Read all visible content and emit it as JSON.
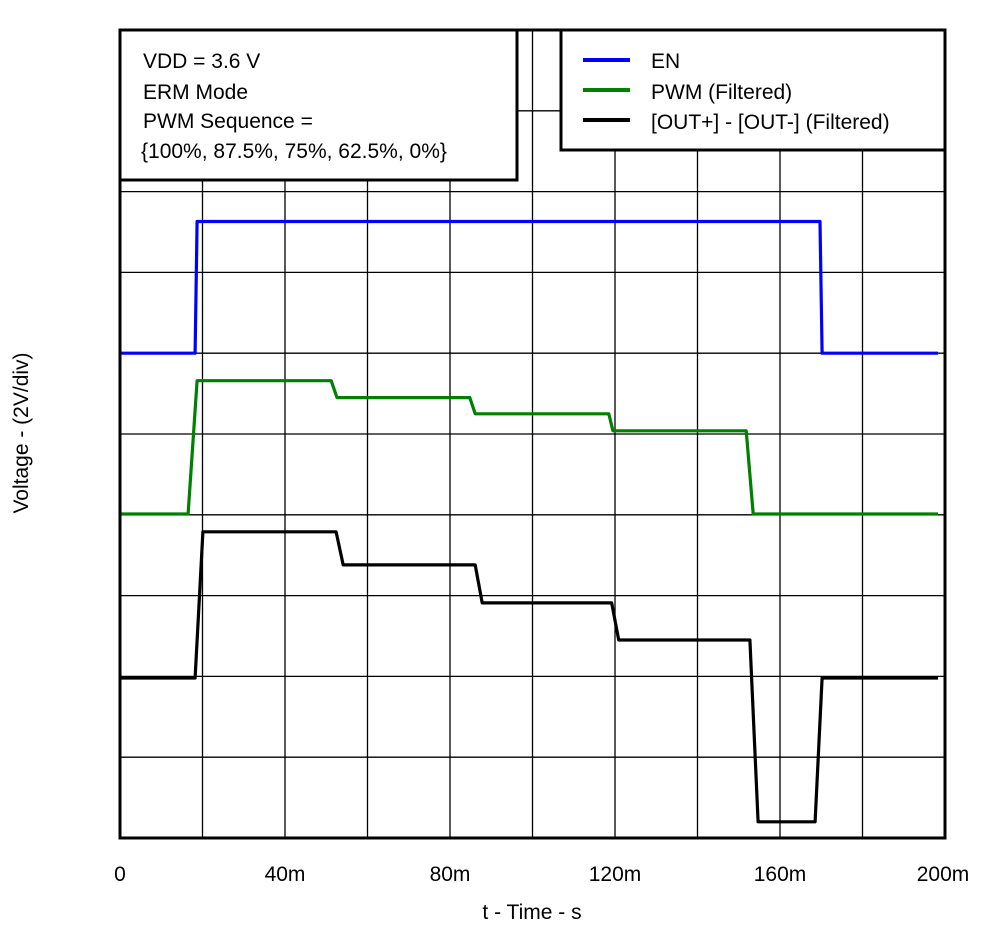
{
  "chart_data": {
    "type": "line",
    "title": "",
    "xlabel": "t - Time - s",
    "ylabel": "Voltage - (2V/div)",
    "xlim_ms": [
      0,
      200
    ],
    "x_tick_labels": [
      "0",
      "40m",
      "80m",
      "120m",
      "160m",
      "200m"
    ],
    "x_ticks_ms": [
      0,
      40,
      80,
      120,
      160,
      200
    ],
    "grid": true,
    "grid_divisions": {
      "x": 10,
      "y": 10
    },
    "volts_per_div": 2,
    "annotation": {
      "lines": [
        "VDD = 3.6 V",
        "ERM Mode",
        "PWM Sequence =",
        "{100%, 87.5%, 75%, 62.5%, 0%}"
      ],
      "position": "top-left"
    },
    "legend": {
      "position": "top-right",
      "entries": [
        {
          "label": "EN",
          "color": "#0000ff"
        },
        {
          "label": "PWM (Filtered)",
          "color": "#008000"
        },
        {
          "label": "[OUT+] - [OUT-] (Filtered)",
          "color": "#000000"
        }
      ]
    },
    "series": [
      {
        "name": "EN",
        "color": "#0000ff",
        "units": "divisions from top of plot",
        "points": [
          [
            0,
            4.0
          ],
          [
            18.2,
            4.0
          ],
          [
            18.7,
            2.37
          ],
          [
            169.7,
            2.37
          ],
          [
            170.2,
            4.0
          ],
          [
            198.3,
            4.0
          ]
        ]
      },
      {
        "name": "PWM (Filtered)",
        "color": "#008000",
        "points": [
          [
            0,
            5.99
          ],
          [
            16.5,
            5.99
          ],
          [
            18.7,
            4.34
          ],
          [
            51.2,
            4.34
          ],
          [
            52.6,
            4.55
          ],
          [
            84.8,
            4.55
          ],
          [
            86.1,
            4.75
          ],
          [
            118.5,
            4.75
          ],
          [
            119.5,
            4.96
          ],
          [
            151.8,
            4.96
          ],
          [
            153.5,
            5.99
          ],
          [
            198.3,
            5.99
          ]
        ]
      },
      {
        "name": "[OUT+] - [OUT-] (Filtered)",
        "color": "#000000",
        "points": [
          [
            0,
            8.02
          ],
          [
            18.2,
            8.02
          ],
          [
            20.1,
            6.21
          ],
          [
            52.4,
            6.21
          ],
          [
            54.1,
            6.62
          ],
          [
            86.1,
            6.62
          ],
          [
            87.8,
            7.09
          ],
          [
            119.2,
            7.09
          ],
          [
            120.9,
            7.55
          ],
          [
            152.7,
            7.55
          ],
          [
            154.7,
            9.8
          ],
          [
            168.5,
            9.8
          ],
          [
            170.2,
            8.02
          ],
          [
            198.3,
            8.02
          ]
        ]
      }
    ]
  }
}
